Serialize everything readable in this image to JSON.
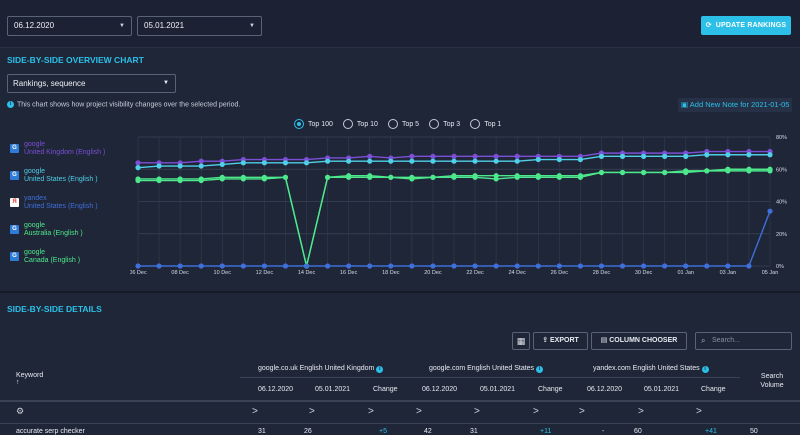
{
  "toolbar": {
    "date_from": "06.12.2020",
    "date_to": "05.01.2021",
    "update_button": "UPDATE RANKINGS"
  },
  "overview": {
    "title": "SIDE-BY-SIDE OVERVIEW CHART",
    "select_value": "Rankings, sequence",
    "info_text": "This chart shows how project visibility changes over the selected period.",
    "add_note": "Add New Note for 2021-01-05",
    "radios": [
      "Top 100",
      "Top 10",
      "Top 5",
      "Top 3",
      "Top 1"
    ],
    "selected_radio": "Top 100",
    "legend": [
      {
        "engine": "google",
        "region": "United Kingdom (English )",
        "color": "#7b4fd6",
        "icon": "google-icon"
      },
      {
        "engine": "google",
        "region": "United States (English )",
        "color": "#4fd0e8",
        "icon": "google-icon"
      },
      {
        "engine": "yandex",
        "region": "United States (English )",
        "color": "#3f6fd8",
        "icon": "yandex-icon"
      },
      {
        "engine": "google",
        "region": "Australia (English )",
        "color": "#4de88c",
        "icon": "google-icon"
      },
      {
        "engine": "google",
        "region": "Canada (English )",
        "color": "#4de88c",
        "icon": "google-icon"
      }
    ]
  },
  "chart_data": {
    "type": "line",
    "x": [
      "06 Dec",
      "07 Dec",
      "08 Dec",
      "09 Dec",
      "10 Dec",
      "11 Dec",
      "12 Dec",
      "13 Dec",
      "14 Dec",
      "15 Dec",
      "16 Dec",
      "17 Dec",
      "18 Dec",
      "19 Dec",
      "20 Dec",
      "21 Dec",
      "22 Dec",
      "23 Dec",
      "24 Dec",
      "25 Dec",
      "26 Dec",
      "27 Dec",
      "28 Dec",
      "29 Dec",
      "30 Dec",
      "31 Dec",
      "01 Jan",
      "02 Jan",
      "03 Jan",
      "04 Jan",
      "05 Jan"
    ],
    "tick_labels": [
      "06 Dec",
      "08 Dec",
      "10 Dec",
      "12 Dec",
      "14 Dec",
      "16 Dec",
      "18 Dec",
      "20 Dec",
      "22 Dec",
      "24 Dec",
      "26 Dec",
      "28 Dec",
      "30 Dec",
      "01 Jan",
      "03 Jan",
      "05 Jan"
    ],
    "y_ticks": [
      "80%",
      "60%",
      "40%",
      "20%",
      "0%"
    ],
    "ylim": [
      0,
      80
    ],
    "grid": true,
    "series": [
      {
        "color": "#7b4fd6",
        "values": [
          64,
          64,
          64,
          65,
          65,
          66,
          66,
          66,
          66,
          67,
          67,
          68,
          67,
          68,
          68,
          68,
          68,
          68,
          68,
          68,
          68,
          68,
          70,
          70,
          70,
          70,
          70,
          71,
          71,
          71,
          71
        ]
      },
      {
        "color": "#4fd0e8",
        "values": [
          61,
          62,
          62,
          62,
          63,
          64,
          64,
          64,
          64,
          65,
          65,
          65,
          65,
          65,
          65,
          65,
          65,
          65,
          65,
          66,
          66,
          66,
          68,
          68,
          68,
          68,
          68,
          69,
          69,
          69,
          69
        ]
      },
      {
        "color": "#4de88c",
        "values": [
          53,
          53,
          53,
          53,
          54,
          54,
          54,
          55,
          0,
          55,
          55,
          55,
          55,
          54,
          55,
          55,
          55,
          54,
          55,
          55,
          55,
          55,
          58,
          58,
          58,
          58,
          58,
          59,
          59,
          59,
          59
        ]
      },
      {
        "color": "#4de88c",
        "values": [
          54,
          54,
          54,
          54,
          55,
          55,
          55,
          55,
          0,
          55,
          56,
          56,
          55,
          55,
          55,
          56,
          56,
          56,
          56,
          56,
          56,
          56,
          58,
          58,
          58,
          58,
          59,
          59,
          60,
          60,
          60
        ]
      },
      {
        "color": "#3f6fd8",
        "values": [
          0,
          0,
          0,
          0,
          0,
          0,
          0,
          0,
          0,
          0,
          0,
          0,
          0,
          0,
          0,
          0,
          0,
          0,
          0,
          0,
          0,
          0,
          0,
          0,
          0,
          0,
          0,
          0,
          0,
          0,
          34
        ]
      }
    ]
  },
  "details": {
    "title": "SIDE-BY-SIDE DETAILS",
    "grid_icon": "table-icon",
    "export_button": "EXPORT",
    "column_chooser_button": "COLUMN CHOOSER",
    "search_placeholder": "Search...",
    "keyword_header": "Keyword",
    "search_volume_header": "Search Volume",
    "groups": [
      "google.co.uk English United Kingdom",
      "google.com English United States",
      "yandex.com English United States"
    ],
    "subcols": [
      "06.12.2020",
      "05.01.2021",
      "Change"
    ],
    "filter_symbol": ">",
    "first_row": {
      "keyword": "accurate serp checker",
      "g1_a": "31",
      "g1_b": "26",
      "g1_change": "+5",
      "g2_a": "42",
      "g2_b": "31",
      "g2_change": "+11",
      "g3_a": "-",
      "g3_b": "60",
      "g3_change": "+41",
      "volume": "50"
    }
  }
}
